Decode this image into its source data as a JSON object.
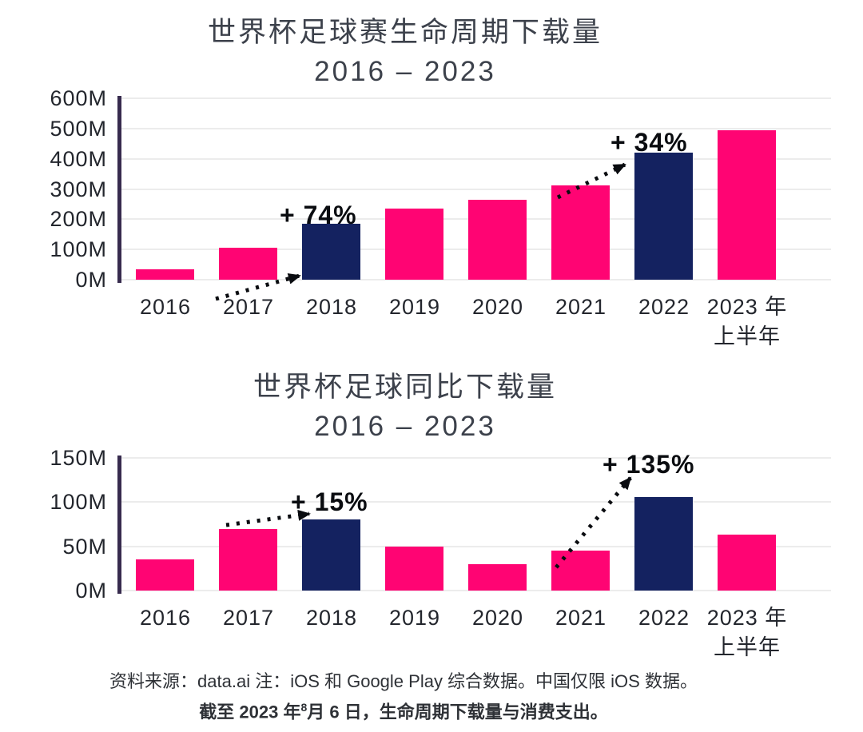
{
  "colors": {
    "bar_pink": "#ff0473",
    "bar_navy": "#142260",
    "axis_line": "#372b4e",
    "gridline": "#ececec",
    "title_text": "#3c414b",
    "tick_text": "#23262d",
    "annotation_text": "#0a0c10"
  },
  "chart_data": [
    {
      "type": "bar",
      "title_line1": "世界杯足球赛生命周期下载量",
      "title_line2": "2016 – 2023",
      "title": "世界杯足球赛生命周期下载量 2016 – 2023",
      "categories": [
        "2016",
        "2017",
        "2018",
        "2019",
        "2020",
        "2021",
        "2022",
        "2023 年\n上半年"
      ],
      "values": [
        35,
        107,
        186,
        235,
        265,
        313,
        420,
        495
      ],
      "unit": "M",
      "ylabel": "",
      "xlabel": "",
      "ylim": [
        0,
        600
      ],
      "yticks": [
        "600M",
        "500M",
        "400M",
        "300M",
        "200M",
        "100M",
        "0M"
      ],
      "grid": "horizontal",
      "legend": "none",
      "highlight_indices": [
        2,
        6
      ],
      "annotations": [
        {
          "label": "+ 74%",
          "bar": "2018"
        },
        {
          "label": "+ 34%",
          "bar": "2022"
        }
      ]
    },
    {
      "type": "bar",
      "title_line1": "世界杯足球同比下载量",
      "title_line2": "2016 – 2023",
      "title": "世界杯足球同比下载量 2016 – 2023",
      "categories": [
        "2016",
        "2017",
        "2018",
        "2019",
        "2020",
        "2021",
        "2022",
        "2023 年\n上半年"
      ],
      "values": [
        35,
        70,
        80,
        50,
        30,
        45,
        106,
        63
      ],
      "unit": "M",
      "ylabel": "",
      "xlabel": "",
      "ylim": [
        0,
        150
      ],
      "yticks": [
        "150M",
        "100M",
        "50M",
        "0M"
      ],
      "grid": "horizontal",
      "legend": "none",
      "highlight_indices": [
        2,
        6
      ],
      "annotations": [
        {
          "label": "+ 15%",
          "bar": "2018"
        },
        {
          "label": "+ 135%",
          "bar": "2022"
        }
      ]
    }
  ],
  "footer": {
    "line1": "资料来源：data.ai 注：iOS 和 Google Play 综合数据。中国仅限 iOS 数据。",
    "line2_part1": "截至 2023 年",
    "line2_sup": "8",
    "line2_part2": "月 6 日，生命周期下载量与消费支出。"
  }
}
